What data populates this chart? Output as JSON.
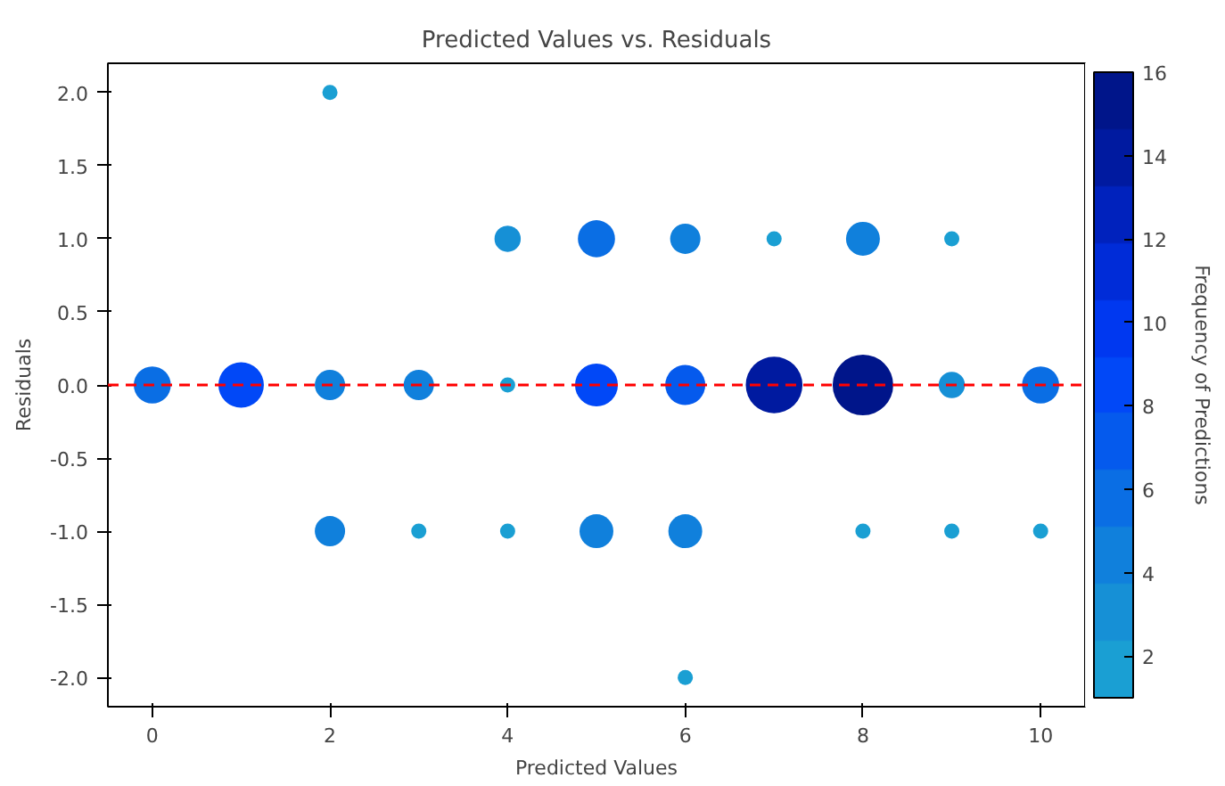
{
  "chart_data": {
    "type": "bubble",
    "title": "Predicted Values vs. Residuals",
    "xlabel": "Predicted Values",
    "ylabel": "Residuals",
    "clabel": "Frequency of Predictions",
    "x": [
      2,
      4,
      5,
      6,
      7,
      8,
      9,
      0,
      1,
      2,
      3,
      4,
      5,
      6,
      7,
      8,
      9,
      10,
      2,
      3,
      4,
      5,
      6,
      8,
      9,
      10,
      6
    ],
    "values": [
      2,
      1,
      1,
      1,
      1,
      1,
      1,
      0,
      0,
      0,
      0,
      0,
      0,
      0,
      0,
      0,
      0,
      0,
      -1,
      -1,
      -1,
      -1,
      -1,
      -1,
      -1,
      -1,
      -2
    ],
    "cvalues": [
      1,
      3,
      6,
      4,
      1,
      5,
      1,
      6,
      9,
      4,
      4,
      1,
      8,
      7,
      14,
      16,
      3,
      6,
      4,
      1,
      1,
      5,
      5,
      1,
      1,
      1,
      1
    ],
    "sizes": [
      0.0625,
      0.1875,
      0.375,
      0.25,
      0.0625,
      0.3125,
      0.0625,
      0.375,
      0.5625,
      0.25,
      0.25,
      0.0625,
      0.5,
      0.4375,
      0.875,
      1,
      0.1875,
      0.375,
      0.25,
      0.0625,
      0.0625,
      0.3125,
      0.3125,
      0.0625,
      0.0625,
      0.0625,
      0.0625
    ],
    "clim": [
      1,
      16
    ],
    "cticks": [
      2,
      4,
      6,
      8,
      10,
      12,
      14,
      16
    ],
    "xlim": [
      -0.5,
      10.5
    ],
    "xticks": [
      0,
      2,
      4,
      6,
      8,
      10
    ],
    "ylim": [
      -2.2,
      2.2
    ],
    "yticks": [
      {
        "value": -2,
        "label": "-2.0"
      },
      {
        "value": -1.5,
        "label": "-1.5"
      },
      {
        "value": -1,
        "label": "-1.0"
      },
      {
        "value": -0.5,
        "label": "-0.5"
      },
      {
        "value": 0,
        "label": "0.0"
      },
      {
        "value": 0.5,
        "label": "0.5"
      },
      {
        "value": 1,
        "label": "1.0"
      },
      {
        "value": 1.5,
        "label": "1.5"
      },
      {
        "value": 2,
        "label": "2.0"
      }
    ],
    "ref_lines": [
      {
        "axis": "y",
        "value": 0,
        "color": "#ff0000",
        "line_style": "dashed"
      }
    ],
    "grid": false
  }
}
